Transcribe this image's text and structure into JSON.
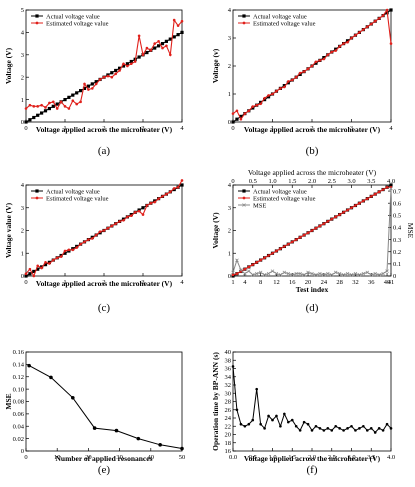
{
  "chart_data": [
    {
      "id": "a",
      "type": "line",
      "caption": "(a)",
      "xlabel": "Voltage applied across the microheater (V)",
      "ylabel": "Voltage (V)",
      "xlim": [
        0,
        4
      ],
      "ylim": [
        0,
        5
      ],
      "xticks": [
        "0",
        "1",
        "2",
        "3",
        "4"
      ],
      "yticks": [
        "0",
        "1",
        "2",
        "3",
        "4",
        "5"
      ],
      "legend": "top-left",
      "series": [
        {
          "name": "Actual voltage value",
          "color": "#000000",
          "marker": "square",
          "x": [
            0,
            0.1,
            0.2,
            0.3,
            0.4,
            0.5,
            0.6,
            0.7,
            0.8,
            0.9,
            1.0,
            1.1,
            1.2,
            1.3,
            1.4,
            1.5,
            1.6,
            1.7,
            1.8,
            1.9,
            2.0,
            2.1,
            2.2,
            2.3,
            2.4,
            2.5,
            2.6,
            2.7,
            2.8,
            2.9,
            3.0,
            3.1,
            3.2,
            3.3,
            3.4,
            3.5,
            3.6,
            3.7,
            3.8,
            3.9,
            4.0
          ],
          "y": [
            0,
            0.1,
            0.2,
            0.3,
            0.4,
            0.5,
            0.6,
            0.7,
            0.8,
            0.9,
            1.0,
            1.1,
            1.2,
            1.3,
            1.4,
            1.5,
            1.6,
            1.7,
            1.8,
            1.9,
            2.0,
            2.1,
            2.2,
            2.3,
            2.4,
            2.5,
            2.6,
            2.7,
            2.8,
            2.9,
            3.0,
            3.1,
            3.2,
            3.3,
            3.4,
            3.5,
            3.6,
            3.7,
            3.8,
            3.9,
            4.0
          ]
        },
        {
          "name": "Estimated voltage value",
          "color": "#e0201b",
          "marker": "dot",
          "x": [
            0,
            0.1,
            0.2,
            0.3,
            0.4,
            0.5,
            0.6,
            0.7,
            0.8,
            0.9,
            1.0,
            1.1,
            1.2,
            1.3,
            1.4,
            1.5,
            1.6,
            1.7,
            1.8,
            1.9,
            2.0,
            2.1,
            2.2,
            2.3,
            2.4,
            2.5,
            2.6,
            2.7,
            2.8,
            2.9,
            3.0,
            3.1,
            3.2,
            3.3,
            3.4,
            3.5,
            3.6,
            3.7,
            3.8,
            3.9,
            4.0
          ],
          "y": [
            0.6,
            0.75,
            0.7,
            0.7,
            0.75,
            0.65,
            0.85,
            0.9,
            0.6,
            0.9,
            0.7,
            0.6,
            0.95,
            0.8,
            0.9,
            1.7,
            1.45,
            1.5,
            1.7,
            1.9,
            2.0,
            2.05,
            2.0,
            2.15,
            2.3,
            2.6,
            2.5,
            2.6,
            2.7,
            3.85,
            3.0,
            3.3,
            3.2,
            3.5,
            3.6,
            3.3,
            3.4,
            3.0,
            4.55,
            4.3,
            4.5
          ]
        }
      ]
    },
    {
      "id": "b",
      "type": "line",
      "caption": "(b)",
      "xlabel": "Voltage applied across the microheater (V)",
      "ylabel": "Voltage (v)",
      "xlim": [
        0,
        4
      ],
      "ylim": [
        0,
        4
      ],
      "xticks": [
        "0",
        "1",
        "2",
        "3",
        "4"
      ],
      "yticks": [
        "0",
        "1",
        "2",
        "3",
        "4"
      ],
      "legend": "top-left",
      "series": [
        {
          "name": "Actual voltage value",
          "color": "#000000",
          "marker": "square",
          "x": [
            0,
            0.1,
            0.2,
            0.3,
            0.4,
            0.5,
            0.6,
            0.7,
            0.8,
            0.9,
            1.0,
            1.1,
            1.2,
            1.3,
            1.4,
            1.5,
            1.6,
            1.7,
            1.8,
            1.9,
            2.0,
            2.1,
            2.2,
            2.3,
            2.4,
            2.5,
            2.6,
            2.7,
            2.8,
            2.9,
            3.0,
            3.1,
            3.2,
            3.3,
            3.4,
            3.5,
            3.6,
            3.7,
            3.8,
            3.9,
            4.0
          ],
          "y": [
            0,
            0.1,
            0.2,
            0.3,
            0.4,
            0.5,
            0.6,
            0.7,
            0.8,
            0.9,
            1.0,
            1.1,
            1.2,
            1.3,
            1.4,
            1.5,
            1.6,
            1.7,
            1.8,
            1.9,
            2.0,
            2.1,
            2.2,
            2.3,
            2.4,
            2.5,
            2.6,
            2.7,
            2.8,
            2.9,
            3.0,
            3.1,
            3.2,
            3.3,
            3.4,
            3.5,
            3.6,
            3.7,
            3.8,
            3.9,
            4.0
          ]
        },
        {
          "name": "Estimated voltage value",
          "color": "#e0201b",
          "marker": "dot",
          "x": [
            0,
            0.1,
            0.2,
            0.3,
            0.4,
            0.5,
            0.6,
            0.7,
            0.8,
            0.9,
            1.0,
            1.1,
            1.2,
            1.3,
            1.4,
            1.5,
            1.6,
            1.7,
            1.8,
            1.9,
            2.0,
            2.1,
            2.2,
            2.3,
            2.4,
            2.5,
            2.6,
            2.7,
            2.8,
            2.9,
            3.0,
            3.1,
            3.2,
            3.3,
            3.4,
            3.5,
            3.6,
            3.7,
            3.8,
            3.9,
            4.0
          ],
          "y": [
            0.3,
            0.4,
            0.1,
            0.3,
            0.4,
            0.55,
            0.6,
            0.65,
            0.85,
            0.95,
            1.0,
            1.1,
            1.2,
            1.25,
            1.45,
            1.5,
            1.6,
            1.75,
            1.8,
            1.9,
            2.0,
            2.15,
            2.2,
            2.25,
            2.4,
            2.5,
            2.55,
            2.7,
            2.8,
            2.85,
            3.0,
            3.1,
            3.2,
            3.3,
            3.4,
            3.5,
            3.6,
            3.7,
            3.8,
            4.0,
            2.8
          ]
        }
      ]
    },
    {
      "id": "c",
      "type": "line",
      "caption": "(c)",
      "xlabel": "Voltage applied across the microheater (V)",
      "ylabel": "Voltage value (V)",
      "xlim": [
        0,
        4
      ],
      "ylim": [
        0,
        4
      ],
      "xticks": [
        "0",
        "1",
        "2",
        "3",
        "4"
      ],
      "yticks": [
        "0",
        "1",
        "2",
        "3",
        "4"
      ],
      "legend": "top-left",
      "series": [
        {
          "name": "Actual voltage value",
          "color": "#000000",
          "marker": "square",
          "x": [
            0,
            0.1,
            0.2,
            0.3,
            0.4,
            0.5,
            0.6,
            0.7,
            0.8,
            0.9,
            1.0,
            1.1,
            1.2,
            1.3,
            1.4,
            1.5,
            1.6,
            1.7,
            1.8,
            1.9,
            2.0,
            2.1,
            2.2,
            2.3,
            2.4,
            2.5,
            2.6,
            2.7,
            2.8,
            2.9,
            3.0,
            3.1,
            3.2,
            3.3,
            3.4,
            3.5,
            3.6,
            3.7,
            3.8,
            3.9,
            4.0
          ],
          "y": [
            0,
            0.1,
            0.2,
            0.3,
            0.4,
            0.5,
            0.6,
            0.7,
            0.8,
            0.9,
            1.0,
            1.1,
            1.2,
            1.3,
            1.4,
            1.5,
            1.6,
            1.7,
            1.8,
            1.9,
            2.0,
            2.1,
            2.2,
            2.3,
            2.4,
            2.5,
            2.6,
            2.7,
            2.8,
            2.9,
            3.0,
            3.1,
            3.2,
            3.3,
            3.4,
            3.5,
            3.6,
            3.7,
            3.8,
            3.9,
            4.0
          ]
        },
        {
          "name": "Estimated voltage value",
          "color": "#e0201b",
          "marker": "dot",
          "x": [
            0,
            0.1,
            0.2,
            0.3,
            0.4,
            0.5,
            0.6,
            0.7,
            0.8,
            0.9,
            1.0,
            1.1,
            1.2,
            1.3,
            1.4,
            1.5,
            1.6,
            1.7,
            1.8,
            1.9,
            2.0,
            2.1,
            2.2,
            2.3,
            2.4,
            2.5,
            2.6,
            2.7,
            2.8,
            2.9,
            3.0,
            3.1,
            3.2,
            3.3,
            3.4,
            3.5,
            3.6,
            3.7,
            3.8,
            3.9,
            4.0
          ],
          "y": [
            0.1,
            0.3,
            0.0,
            0.45,
            0.35,
            0.6,
            0.55,
            0.7,
            0.8,
            0.85,
            1.1,
            1.15,
            1.15,
            1.25,
            1.4,
            1.5,
            1.6,
            1.65,
            1.8,
            1.95,
            2.0,
            2.1,
            2.2,
            2.3,
            2.4,
            2.45,
            2.6,
            2.65,
            2.8,
            2.85,
            2.7,
            3.1,
            3.2,
            3.25,
            3.4,
            3.5,
            3.6,
            3.7,
            3.85,
            3.9,
            4.2
          ]
        }
      ]
    },
    {
      "id": "d",
      "type": "line",
      "caption": "(d)",
      "xlabel": "Test index",
      "ylabel": "Voltage (V)",
      "x2label": "Voltage applied across the microheater (V)",
      "y2label": "MSE",
      "xlim": [
        1,
        41
      ],
      "ylim": [
        0,
        4
      ],
      "x2lim": [
        0,
        4
      ],
      "y2lim": [
        0,
        0.75
      ],
      "xticks": [
        "1",
        "4",
        "8",
        "12",
        "16",
        "20",
        "24",
        "28",
        "32",
        "36",
        "40",
        "41"
      ],
      "yticks": [
        "0",
        "1",
        "2",
        "3",
        "4"
      ],
      "x2ticks": [
        "0",
        "0.5",
        "1.0",
        "1.5",
        "2.0",
        "2.5",
        "3.0",
        "3.5",
        "4.0"
      ],
      "y2ticks": [
        "0",
        "0.1",
        "0.2",
        "0.3",
        "0.4",
        "0.5",
        "0.6",
        "0.7"
      ],
      "legend": "top-left",
      "series": [
        {
          "name": "Actual voltage value",
          "color": "#000000",
          "marker": "square",
          "x": [
            1,
            2,
            3,
            4,
            5,
            6,
            7,
            8,
            9,
            10,
            11,
            12,
            13,
            14,
            15,
            16,
            17,
            18,
            19,
            20,
            21,
            22,
            23,
            24,
            25,
            26,
            27,
            28,
            29,
            30,
            31,
            32,
            33,
            34,
            35,
            36,
            37,
            38,
            39,
            40,
            41
          ],
          "y": [
            0,
            0.1,
            0.2,
            0.3,
            0.4,
            0.5,
            0.6,
            0.7,
            0.8,
            0.9,
            1.0,
            1.1,
            1.2,
            1.3,
            1.4,
            1.5,
            1.6,
            1.7,
            1.8,
            1.9,
            2.0,
            2.1,
            2.2,
            2.3,
            2.4,
            2.5,
            2.6,
            2.7,
            2.8,
            2.9,
            3.0,
            3.1,
            3.2,
            3.3,
            3.4,
            3.5,
            3.6,
            3.7,
            3.8,
            3.9,
            4.0
          ]
        },
        {
          "name": "Estimated voltage value",
          "color": "#e0201b",
          "marker": "dot",
          "x": [
            1,
            2,
            3,
            4,
            5,
            6,
            7,
            8,
            9,
            10,
            11,
            12,
            13,
            14,
            15,
            16,
            17,
            18,
            19,
            20,
            21,
            22,
            23,
            24,
            25,
            26,
            27,
            28,
            29,
            30,
            31,
            32,
            33,
            34,
            35,
            36,
            37,
            38,
            39,
            40,
            41
          ],
          "y": [
            0.05,
            0.1,
            0.2,
            0.3,
            0.4,
            0.5,
            0.6,
            0.7,
            0.8,
            0.9,
            1.0,
            1.1,
            1.2,
            1.3,
            1.4,
            1.5,
            1.6,
            1.7,
            1.8,
            1.9,
            2.0,
            2.1,
            2.2,
            2.3,
            2.4,
            2.5,
            2.6,
            2.7,
            2.8,
            2.9,
            3.0,
            3.1,
            3.2,
            3.3,
            3.4,
            3.5,
            3.6,
            3.7,
            3.8,
            3.9,
            3.9
          ]
        },
        {
          "name": "MSE",
          "color": "#888888",
          "marker": "x",
          "axis": "right",
          "x": [
            1,
            2,
            3,
            4,
            5,
            6,
            7,
            8,
            9,
            10,
            11,
            12,
            13,
            14,
            15,
            16,
            17,
            18,
            19,
            20,
            21,
            22,
            23,
            24,
            25,
            26,
            27,
            28,
            29,
            30,
            31,
            32,
            33,
            34,
            35,
            36,
            37,
            38,
            39,
            40,
            41
          ],
          "y": [
            0.03,
            0.13,
            0.05,
            0.02,
            0.04,
            0.01,
            0.02,
            0.03,
            0.01,
            0.02,
            0.04,
            0.02,
            0.01,
            0.03,
            0.02,
            0.01,
            0.02,
            0.02,
            0.01,
            0.03,
            0.02,
            0.01,
            0.02,
            0.01,
            0.02,
            0.01,
            0.03,
            0.02,
            0.01,
            0.02,
            0.01,
            0.02,
            0.01,
            0.02,
            0.03,
            0.01,
            0.02,
            0.01,
            0.02,
            0.04,
            0.72
          ]
        }
      ]
    },
    {
      "id": "e",
      "type": "line",
      "caption": "(e)",
      "xlabel": "Number of applied resonances",
      "ylabel": "MSE",
      "xlim": [
        0,
        50
      ],
      "ylim": [
        0,
        0.16
      ],
      "xticks": [
        "0",
        "10",
        "20",
        "30",
        "40",
        "50"
      ],
      "yticks": [
        "0",
        "0.02",
        "0.04",
        "0.06",
        "0.08",
        "0.10",
        "0.12",
        "0.14",
        "0.16"
      ],
      "series": [
        {
          "name": "",
          "color": "#000000",
          "marker": "dot",
          "x": [
            1,
            8,
            15,
            22,
            29,
            36,
            43,
            50
          ],
          "y": [
            0.138,
            0.119,
            0.086,
            0.037,
            0.033,
            0.02,
            0.01,
            0.004
          ]
        }
      ]
    },
    {
      "id": "f",
      "type": "line",
      "caption": "(f)",
      "xlabel": "Voltage applied across the microheater (V)",
      "ylabel": "Operation time by BP-ANN (s)",
      "xlim": [
        0,
        4
      ],
      "ylim": [
        16,
        40
      ],
      "xticks": [
        "0.0",
        "0.5",
        "1.0",
        "1.5",
        "2.0",
        "2.5",
        "3.0",
        "3.5",
        "4.0"
      ],
      "yticks": [
        "16",
        "18",
        "20",
        "22",
        "24",
        "26",
        "28",
        "30",
        "32",
        "34",
        "36",
        "38",
        "40"
      ],
      "series": [
        {
          "name": "",
          "color": "#000000",
          "marker": "dot",
          "x": [
            0,
            0.1,
            0.2,
            0.3,
            0.4,
            0.5,
            0.6,
            0.7,
            0.8,
            0.9,
            1.0,
            1.1,
            1.2,
            1.3,
            1.4,
            1.5,
            1.6,
            1.7,
            1.8,
            1.9,
            2.0,
            2.1,
            2.2,
            2.3,
            2.4,
            2.5,
            2.6,
            2.7,
            2.8,
            2.9,
            3.0,
            3.1,
            3.2,
            3.3,
            3.4,
            3.5,
            3.6,
            3.7,
            3.8,
            3.9,
            4.0
          ],
          "y": [
            36.5,
            26.0,
            22.5,
            22.0,
            22.5,
            23.5,
            31.0,
            22.5,
            21.5,
            24.5,
            23.5,
            24.5,
            22.0,
            25.0,
            23.0,
            23.5,
            22.0,
            21.0,
            23.0,
            22.5,
            21.0,
            22.0,
            21.5,
            21.0,
            21.5,
            21.0,
            22.0,
            21.5,
            21.0,
            21.5,
            22.0,
            21.0,
            21.5,
            22.0,
            21.0,
            21.5,
            20.5,
            21.5,
            21.0,
            22.5,
            21.5
          ]
        }
      ]
    }
  ]
}
